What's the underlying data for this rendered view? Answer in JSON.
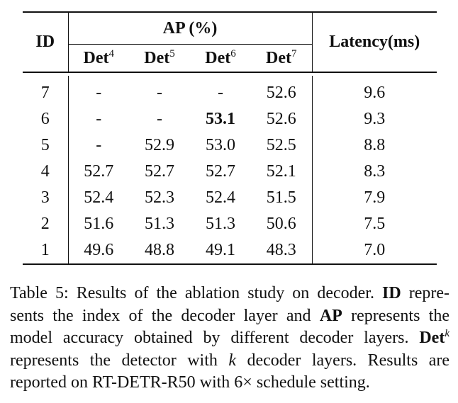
{
  "table": {
    "header": {
      "id": "ID",
      "ap": "AP (%)",
      "latency": "Latency(ms)",
      "det_base": "Det",
      "det_sups": [
        "4",
        "5",
        "6",
        "7"
      ]
    },
    "rows": [
      {
        "id": "7",
        "det4": "-",
        "det5": "-",
        "det6": "-",
        "det7": "52.6",
        "latency": "9.6"
      },
      {
        "id": "6",
        "det4": "-",
        "det5": "-",
        "det6": "53.1",
        "det7": "52.6",
        "latency": "9.3"
      },
      {
        "id": "5",
        "det4": "-",
        "det5": "52.9",
        "det6": "53.0",
        "det7": "52.5",
        "latency": "8.8"
      },
      {
        "id": "4",
        "det4": "52.7",
        "det5": "52.7",
        "det6": "52.7",
        "det7": "52.1",
        "latency": "8.3"
      },
      {
        "id": "3",
        "det4": "52.4",
        "det5": "52.3",
        "det6": "52.4",
        "det7": "51.5",
        "latency": "7.9"
      },
      {
        "id": "2",
        "det4": "51.6",
        "det5": "51.3",
        "det6": "51.3",
        "det7": "50.6",
        "latency": "7.5"
      },
      {
        "id": "1",
        "det4": "49.6",
        "det5": "48.8",
        "det6": "49.1",
        "det7": "48.3",
        "latency": "7.0"
      }
    ]
  },
  "caption": {
    "l1_a": "Table 5: Results of the ablation study on decoder.",
    "l1_b": "ID",
    "l1_c": "repre-",
    "l2_a": "sents the index of the decoder layer and",
    "l2_b": "AP",
    "l2_c": "represents the",
    "l3_a": "model accuracy obtained by different decoder layers.",
    "l3_b": "Det",
    "l3_sup": "k",
    "l4_a": "represents the detector with",
    "l4_k": "k",
    "l4_b": "decoder layers.  Results are",
    "l5": "reported on RT-DETR-R50 with 6× schedule setting."
  }
}
